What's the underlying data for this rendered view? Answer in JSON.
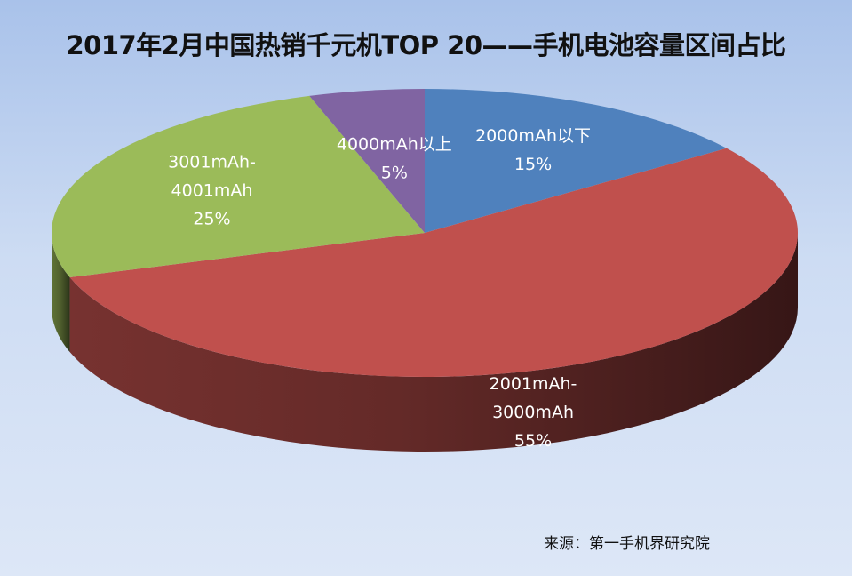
{
  "chart_data": {
    "type": "pie",
    "title": "2017年2月中国热销千元机TOP 20——手机电池容量区间占比",
    "slices": [
      {
        "lines": [
          "2000mAh以下",
          "15%"
        ],
        "value": 15,
        "color": "#4f81bd"
      },
      {
        "lines": [
          "2001mAh-",
          "3000mAh",
          "55%"
        ],
        "value": 55,
        "color": "#c0504d"
      },
      {
        "lines": [
          "3001mAh-",
          "4001mAh",
          "25%"
        ],
        "value": 25,
        "color": "#9bbb59"
      },
      {
        "lines": [
          "4000mAh以上",
          "5%"
        ],
        "value": 5,
        "color": "#8064a2"
      }
    ],
    "three_d": true,
    "start_direction": "top",
    "clockwise": true
  },
  "source": "来源：第一手机界研究院"
}
